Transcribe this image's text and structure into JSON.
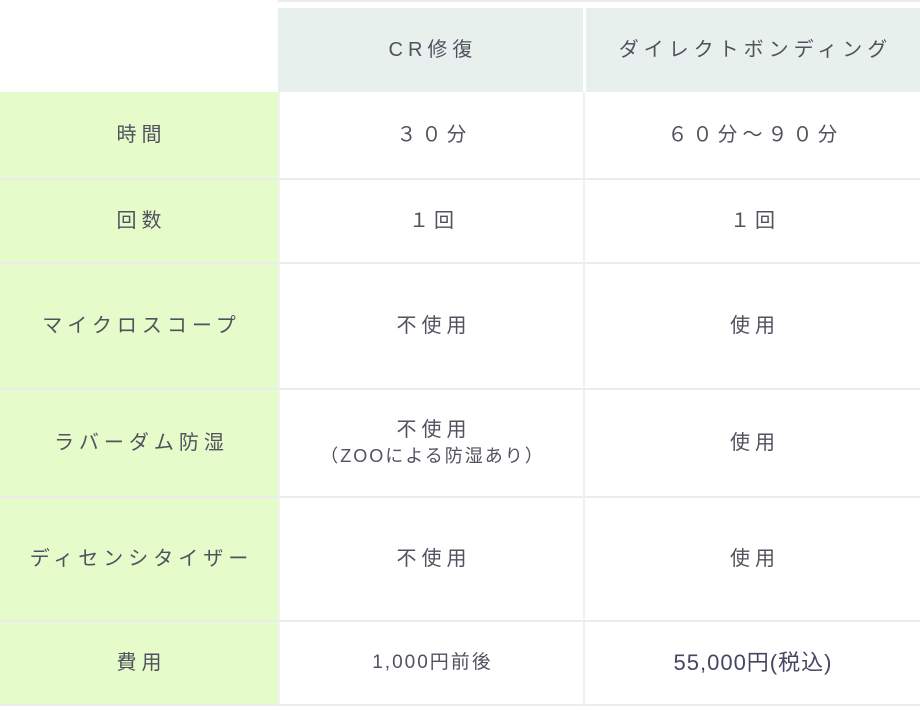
{
  "theme": {
    "label-col-bg": "#e5fbca",
    "header-bg": "#e8f0ed",
    "row-border": "#ececec",
    "text-color": "#51525e",
    "fee-text-color": "#454661"
  },
  "table": {
    "columns": [
      "",
      "CR修復",
      "ダイレクトボンディング"
    ],
    "rows": [
      {
        "label": "時間",
        "cr": "３０分",
        "direct": "６０分～９０分"
      },
      {
        "label": "回数",
        "cr": "１回",
        "direct": "１回"
      },
      {
        "label": "マイクロスコープ",
        "cr": "不使用",
        "direct": "使用"
      },
      {
        "label": "ラバーダム防湿",
        "cr": "不使用",
        "cr_note": "（ZOOによる防湿あり）",
        "direct": "使用"
      },
      {
        "label": "ディセンシタイザー",
        "cr": "不使用",
        "direct": "使用"
      },
      {
        "label": "費用",
        "cr": "1,000円前後",
        "direct": "55,000円(税込)"
      }
    ]
  }
}
